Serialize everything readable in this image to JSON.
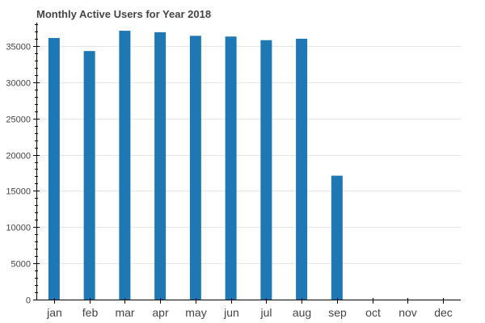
{
  "chart_data": {
    "type": "bar",
    "title": "Monthly Active Users for Year 2018",
    "categories": [
      "jan",
      "feb",
      "mar",
      "apr",
      "may",
      "jun",
      "jul",
      "aug",
      "sep",
      "oct",
      "nov",
      "dec"
    ],
    "values": [
      36100,
      34300,
      37100,
      36900,
      36400,
      36300,
      35800,
      36000,
      17100,
      0,
      0,
      0
    ],
    "ylim": [
      0,
      38000
    ],
    "yticks": [
      0,
      5000,
      10000,
      15000,
      20000,
      25000,
      30000,
      35000
    ],
    "grid": true,
    "bar_color": "#1f77b4"
  }
}
